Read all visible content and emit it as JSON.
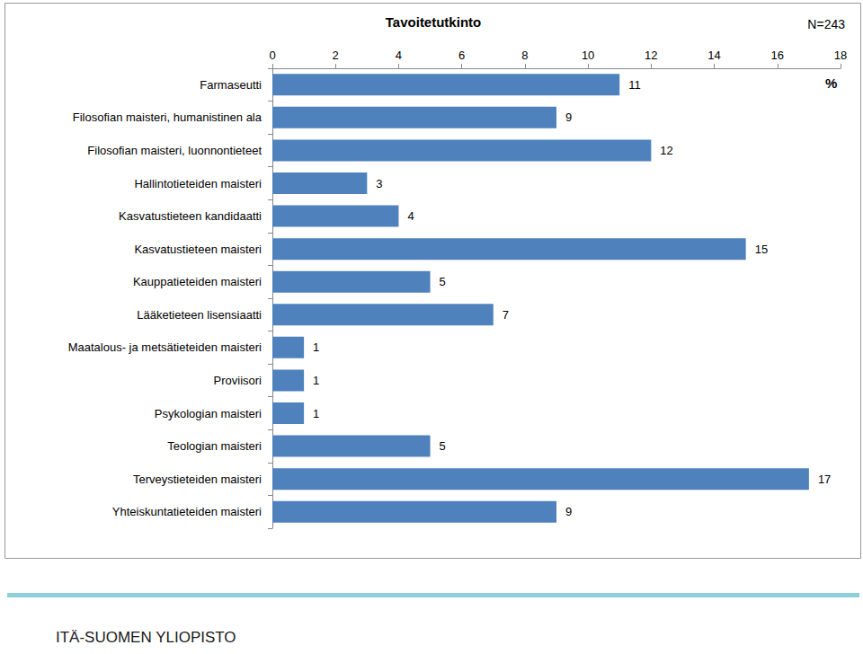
{
  "chart_data": {
    "type": "bar",
    "title": "Tavoitetutkinto",
    "annotations": [
      "N=243",
      "%"
    ],
    "footer": "ITÄ-SUOMEN YLIOPISTO",
    "categories": [
      "Farmaseutti",
      "Filosofian maisteri, humanistinen ala",
      "Filosofian maisteri, luonnontieteet",
      "Hallintotieteiden maisteri",
      "Kasvatustieteen kandidaatti",
      "Kasvatustieteen maisteri",
      "Kauppatieteiden maisteri",
      "Lääketieteen lisensiaatti",
      "Maatalous- ja metsätieteiden maisteri",
      "Proviisori",
      "Psykologian maisteri",
      "Teologian maisteri",
      "Terveystieteiden maisteri",
      "Yhteiskuntatieteiden maisteri"
    ],
    "values": [
      11,
      9,
      12,
      3,
      4,
      15,
      5,
      7,
      1,
      1,
      1,
      5,
      17,
      9
    ],
    "color": "#4f81bd",
    "xlim": [
      0,
      18
    ],
    "xticks": [
      0,
      2,
      4,
      6,
      8,
      10,
      12,
      14,
      16,
      18
    ],
    "orientation": "horizontal",
    "grid": false,
    "data_labels": true
  }
}
